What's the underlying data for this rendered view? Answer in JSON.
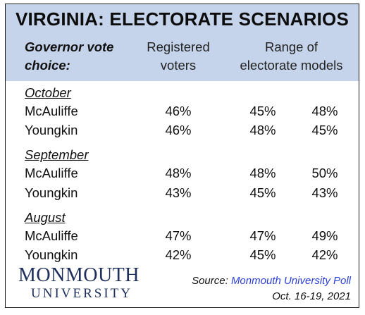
{
  "title": "VIRGINIA: ELECTORATE SCENARIOS",
  "header": {
    "governor_line1": "Governor vote",
    "governor_line2": "choice:",
    "registered_line1": "Registered",
    "registered_line2": "voters",
    "range_line1": "Range of",
    "range_line2": "electorate models"
  },
  "sections": [
    {
      "label": "October",
      "rows": [
        {
          "name": "McAuliffe",
          "registered": "46%",
          "model_a": "45%",
          "model_b": "48%"
        },
        {
          "name": "Youngkin",
          "registered": "46%",
          "model_a": "48%",
          "model_b": "45%"
        }
      ]
    },
    {
      "label": "September",
      "rows": [
        {
          "name": "McAuliffe",
          "registered": "48%",
          "model_a": "48%",
          "model_b": "50%"
        },
        {
          "name": "Youngkin",
          "registered": "43%",
          "model_a": "45%",
          "model_b": "43%"
        }
      ]
    },
    {
      "label": "August",
      "rows": [
        {
          "name": "McAuliffe",
          "registered": "47%",
          "model_a": "47%",
          "model_b": "49%"
        },
        {
          "name": "Youngkin",
          "registered": "42%",
          "model_a": "45%",
          "model_b": "42%"
        }
      ]
    }
  ],
  "logo": {
    "line1": "MONMOUTH",
    "line2": "UNIVERSITY"
  },
  "source": {
    "prefix": "Source:",
    "name": "Monmouth University Poll",
    "date": "Oct. 16-19, 2021"
  },
  "colors": {
    "header_bg": "#c5d4ea",
    "logo": "#1f2f5c",
    "source_link": "#2b3fd6"
  }
}
